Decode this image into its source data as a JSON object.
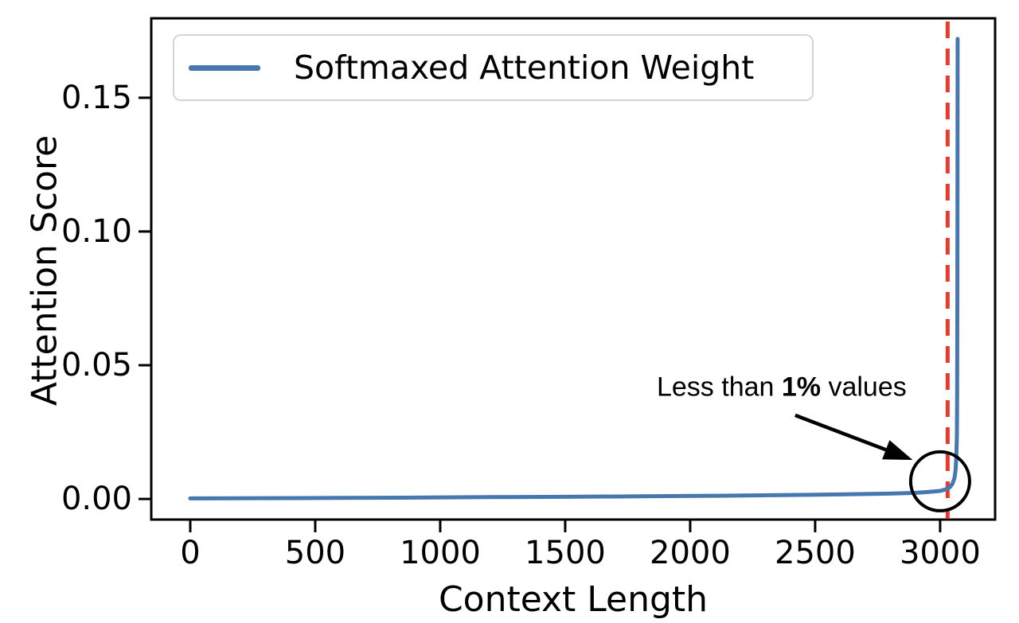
{
  "chart_data": {
    "type": "line",
    "title": "",
    "xlabel": "Context Length",
    "ylabel": "Attention Score",
    "x_range": [
      -156,
      3220
    ],
    "y_range": [
      -0.0077,
      0.1797
    ],
    "x_ticks": [
      0,
      500,
      1000,
      1500,
      2000,
      2500,
      3000
    ],
    "y_ticks": [
      0.0,
      0.05,
      0.1,
      0.15
    ],
    "y_tick_labels": [
      "0.00",
      "0.05",
      "0.10",
      "0.15"
    ],
    "grid": false,
    "legend_position": "upper left",
    "frame_color": "#000000",
    "series": [
      {
        "name": "Softmaxed Attention Weight",
        "color": "#4678af",
        "line_width": 5,
        "points": [
          [
            0,
            0.0002
          ],
          [
            300,
            0.0003
          ],
          [
            600,
            0.0004
          ],
          [
            900,
            0.0005
          ],
          [
            1200,
            0.0007
          ],
          [
            1500,
            0.0008
          ],
          [
            1800,
            0.001
          ],
          [
            2100,
            0.0012
          ],
          [
            2400,
            0.0015
          ],
          [
            2600,
            0.0017
          ],
          [
            2800,
            0.002
          ],
          [
            2900,
            0.0023
          ],
          [
            2950,
            0.0026
          ],
          [
            3000,
            0.003
          ],
          [
            3020,
            0.0035
          ],
          [
            3040,
            0.0045
          ],
          [
            3050,
            0.0058
          ],
          [
            3058,
            0.008
          ],
          [
            3062,
            0.011
          ],
          [
            3065,
            0.016
          ],
          [
            3067,
            0.024
          ],
          [
            3068,
            0.04
          ],
          [
            3069,
            0.08
          ],
          [
            3070,
            0.172
          ]
        ]
      }
    ],
    "vline": {
      "x": 3030,
      "color": "#e53a2d",
      "style": "dashed",
      "width": 5
    },
    "annotations": {
      "text": {
        "prefix": "Less than ",
        "bold": "1%",
        "suffix": " values",
        "x": 2366,
        "y": 0.0417
      },
      "arrow": {
        "from": [
          2420,
          0.0313
        ],
        "to": [
          2890,
          0.0146
        ],
        "color": "#000000"
      },
      "circle": {
        "x": 3000,
        "y": 0.0066,
        "radius_px": 37,
        "color": "#000000"
      }
    }
  }
}
